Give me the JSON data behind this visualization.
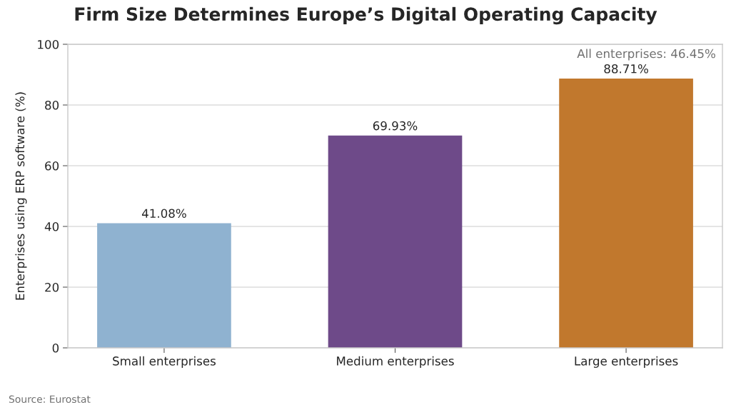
{
  "chart_data": {
    "type": "bar",
    "title": "Firm Size Determines Europe’s Digital Operating Capacity",
    "ylabel": "Enterprises using ERP software (%)",
    "categories": [
      "Small enterprises",
      "Medium enterprises",
      "Large enterprises"
    ],
    "values": [
      41.08,
      69.93,
      88.71
    ],
    "colors": [
      "#8fb2d0",
      "#6e4a89",
      "#c1782d"
    ],
    "value_labels": [
      "41.08%",
      "69.93%",
      "88.71%"
    ],
    "ylim": [
      0,
      100
    ],
    "yticks": [
      0,
      20,
      40,
      60,
      80,
      100
    ],
    "grid": "y",
    "annotations": [
      "All enterprises: 46.45%",
      "Source: Eurostat"
    ]
  }
}
